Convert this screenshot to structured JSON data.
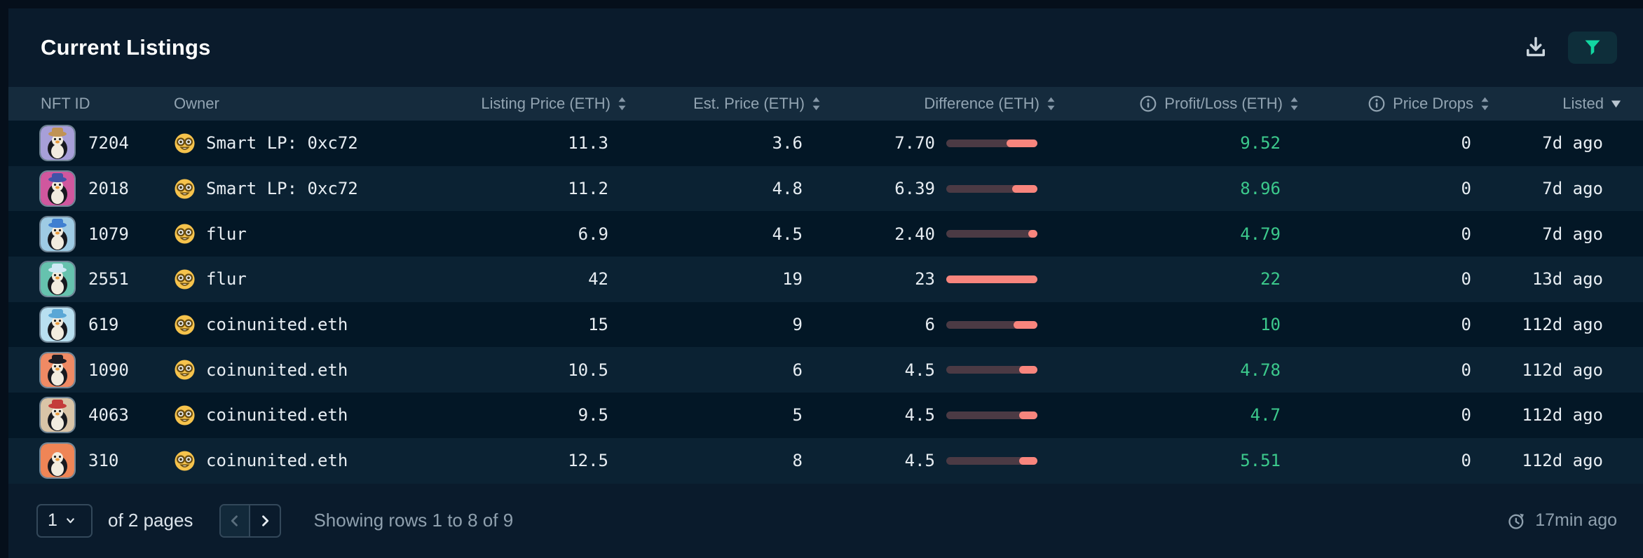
{
  "title": "Current Listings",
  "toolbar": {
    "download_icon": "download-icon",
    "filter_icon": "funnel-icon",
    "filter_accent_color": "#12d7a2"
  },
  "colors": {
    "profit_green": "#3cc98c",
    "bar_fill_salmon": "#f8857d",
    "bar_track": "#4b3a44",
    "header_bg": "#152b3d",
    "row_odd": "#031726",
    "row_even": "#0b2233"
  },
  "table": {
    "columns": [
      {
        "label": "NFT ID",
        "align": "left",
        "sort": null,
        "info": false
      },
      {
        "label": "Owner",
        "align": "left",
        "sort": null,
        "info": false
      },
      {
        "label": "Listing Price (ETH)",
        "align": "right",
        "sort": "both",
        "info": false
      },
      {
        "label": "Est. Price (ETH)",
        "align": "right",
        "sort": "both",
        "info": false
      },
      {
        "label": "Difference (ETH)",
        "align": "right",
        "sort": "both",
        "info": false
      },
      {
        "label": "Profit/Loss (ETH)",
        "align": "right",
        "sort": "both",
        "info": true
      },
      {
        "label": "Price Drops",
        "align": "right",
        "sort": "both",
        "info": true
      },
      {
        "label": "Listed",
        "align": "right",
        "sort": "desc",
        "info": false
      }
    ],
    "rows": [
      {
        "id": "7204",
        "owner": "Smart LP: 0xc72",
        "listing": "11.3",
        "est": "3.6",
        "diff": "7.70",
        "diff_pct": 34,
        "profit": "9.52",
        "drops": "0",
        "listed": "7d ago",
        "avatar_bg": "#a79fd8",
        "avatar_hat": "#c09355"
      },
      {
        "id": "2018",
        "owner": "Smart LP: 0xc72",
        "listing": "11.2",
        "est": "4.8",
        "diff": "6.39",
        "diff_pct": 28,
        "profit": "8.96",
        "drops": "0",
        "listed": "7d ago",
        "avatar_bg": "#d0579e",
        "avatar_hat": "#4053a8"
      },
      {
        "id": "1079",
        "owner": "flur",
        "listing": "6.9",
        "est": "4.5",
        "diff": "2.40",
        "diff_pct": 10,
        "profit": "4.79",
        "drops": "0",
        "listed": "7d ago",
        "avatar_bg": "#9ecbe4",
        "avatar_hat": "#3f7fd1"
      },
      {
        "id": "2551",
        "owner": "flur",
        "listing": "42",
        "est": "19",
        "diff": "23",
        "diff_pct": 100,
        "profit": "22",
        "drops": "0",
        "listed": "13d ago",
        "avatar_bg": "#66c2ae",
        "avatar_hat": "#cfe9f5"
      },
      {
        "id": "619",
        "owner": "coinunited.eth",
        "listing": "15",
        "est": "9",
        "diff": "6",
        "diff_pct": 26,
        "profit": "10",
        "drops": "0",
        "listed": "112d ago",
        "avatar_bg": "#b8dff0",
        "avatar_hat": "#5aa7d6"
      },
      {
        "id": "1090",
        "owner": "coinunited.eth",
        "listing": "10.5",
        "est": "6",
        "diff": "4.5",
        "diff_pct": 20,
        "profit": "4.78",
        "drops": "0",
        "listed": "112d ago",
        "avatar_bg": "#ef8a64",
        "avatar_hat": "#1c1c24"
      },
      {
        "id": "4063",
        "owner": "coinunited.eth",
        "listing": "9.5",
        "est": "5",
        "diff": "4.5",
        "diff_pct": 20,
        "profit": "4.7",
        "drops": "0",
        "listed": "112d ago",
        "avatar_bg": "#d9c4a7",
        "avatar_hat": "#c43b3b"
      },
      {
        "id": "310",
        "owner": "coinunited.eth",
        "listing": "12.5",
        "est": "8",
        "diff": "4.5",
        "diff_pct": 20,
        "profit": "5.51",
        "drops": "0",
        "listed": "112d ago",
        "avatar_bg": "#ef8556",
        "avatar_hat": null
      }
    ]
  },
  "footer": {
    "page": "1",
    "pages_label": "of 2 pages",
    "showing": "Showing rows 1 to 8 of 9",
    "updated": "17min ago"
  }
}
